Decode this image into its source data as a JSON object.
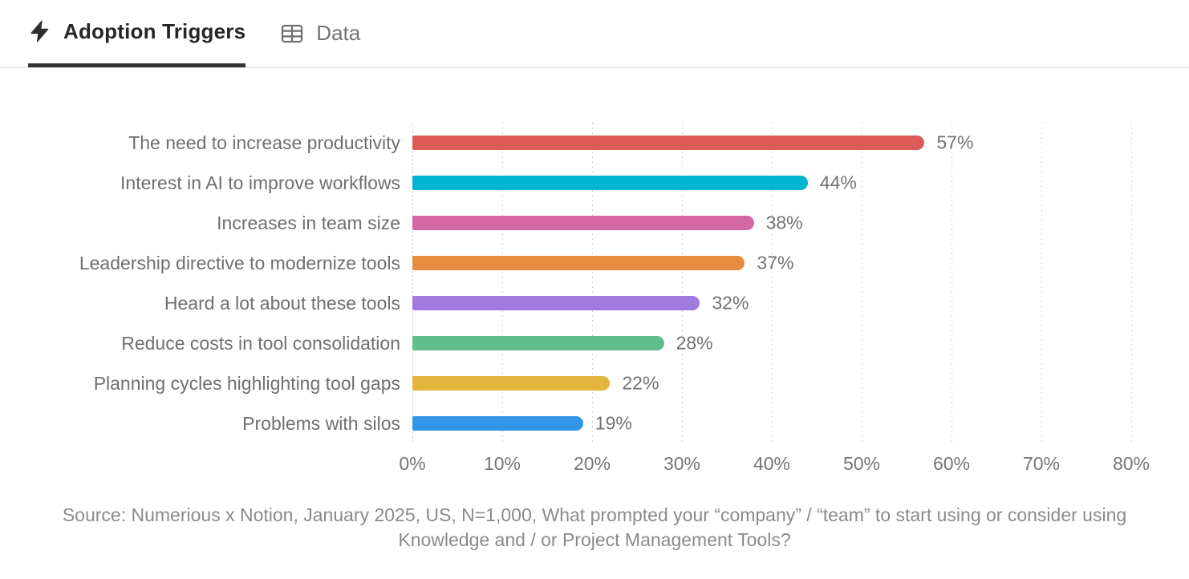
{
  "header": {
    "tabs": [
      {
        "label": "Adoption Triggers",
        "icon": "bolt-icon",
        "active": true
      },
      {
        "label": "Data",
        "icon": "table-icon",
        "active": false
      }
    ]
  },
  "chart_data": {
    "type": "bar",
    "orientation": "horizontal",
    "title": "",
    "categories": [
      "The need to increase productivity",
      "Interest in AI to improve workflows",
      "Increases in team size",
      "Leadership directive to modernize tools",
      "Heard a lot about these tools",
      "Reduce costs in tool consolidation",
      "Planning cycles highlighting tool gaps",
      "Problems with silos"
    ],
    "values": [
      57,
      44,
      38,
      37,
      32,
      28,
      22,
      19
    ],
    "value_labels": [
      "57%",
      "44%",
      "38%",
      "37%",
      "32%",
      "28%",
      "22%",
      "19%"
    ],
    "bar_colors": [
      "#DC5B56",
      "#00B3D0",
      "#D667A6",
      "#E98C40",
      "#A17ADF",
      "#60BD8C",
      "#E4B53C",
      "#3295E8"
    ],
    "xlabel": "",
    "ylabel": "",
    "xlim": [
      0,
      80
    ],
    "x_ticks": [
      "0%",
      "10%",
      "20%",
      "30%",
      "40%",
      "50%",
      "60%",
      "70%",
      "80%"
    ],
    "grid": "dotted-vertical",
    "legend": "none"
  },
  "source": {
    "text": "Source: Numerious x Notion, January 2025, US, N=1,000, What prompted your “company” / “team” to start using or consider using Knowledge and / or Project Management Tools?"
  }
}
